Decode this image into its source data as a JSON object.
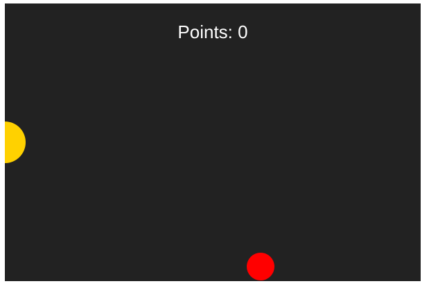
{
  "game": {
    "score_text": "Points: 0",
    "score_value": 0,
    "background_color": "#222222",
    "player_ball": {
      "color": "#FFD100"
    },
    "target_ball": {
      "color": "#FF0000"
    }
  }
}
